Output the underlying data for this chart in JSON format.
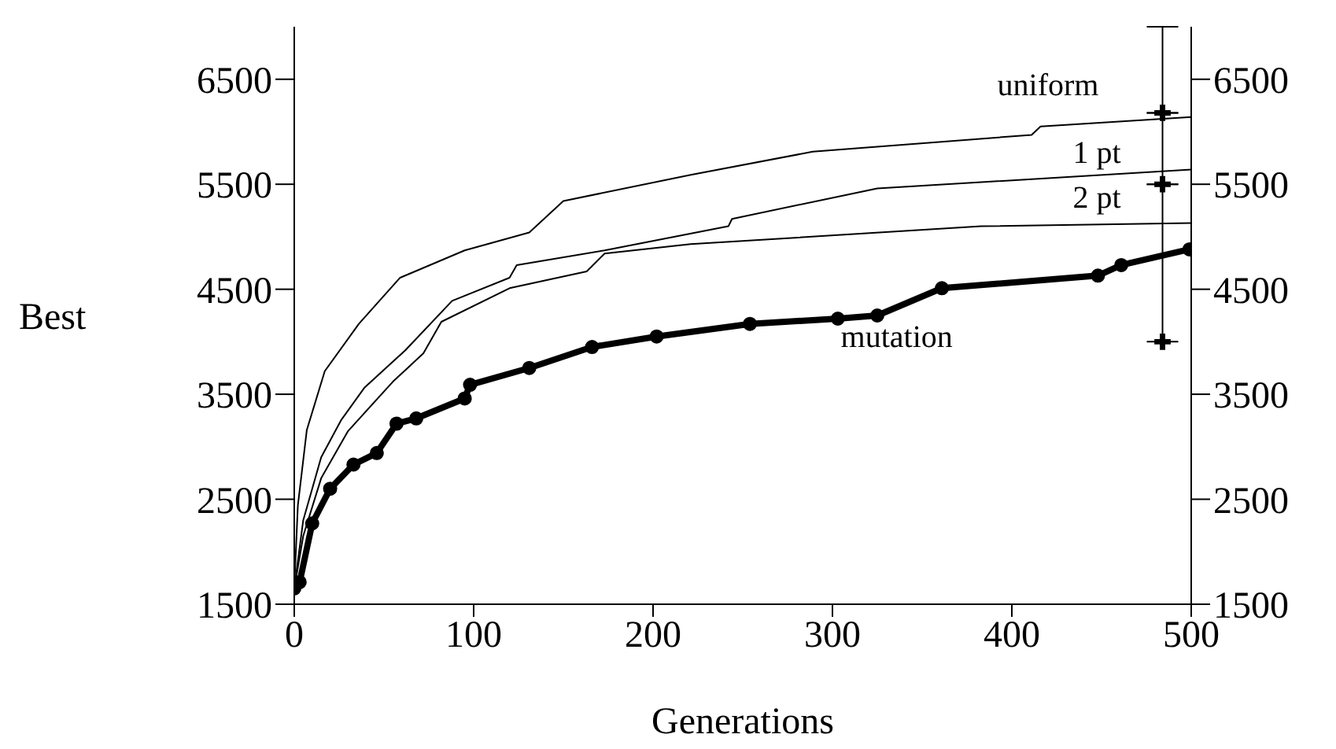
{
  "chart_data": {
    "type": "line",
    "xlabel": "Generations",
    "ylabel": "Best",
    "xlim": [
      0,
      500
    ],
    "xticks": [
      0,
      100,
      200,
      300,
      400,
      500
    ],
    "ylim": [
      1500,
      7000
    ],
    "yticks": [
      1500,
      2500,
      3500,
      4500,
      5500,
      6500
    ],
    "y2lim": [
      1500,
      7000
    ],
    "y2ticks": [
      1500,
      2500,
      3500,
      4500,
      5500,
      6500
    ],
    "grid": false,
    "legend": false,
    "line_style": "solid",
    "series": [
      {
        "name": "uniform",
        "color": "#000000",
        "marker": "none",
        "x": [
          0,
          2,
          7,
          17,
          36,
          59,
          95,
          131,
          150,
          221,
          289,
          411,
          416,
          500
        ],
        "values": [
          1650,
          2440,
          3160,
          3720,
          4170,
          4610,
          4870,
          5040,
          5340,
          5590,
          5810,
          5970,
          6050,
          6140
        ]
      },
      {
        "name": "1 pt",
        "color": "#000000",
        "marker": "none",
        "x": [
          0,
          5,
          15,
          26,
          39,
          62,
          88,
          120,
          124,
          173,
          242,
          244,
          325,
          500
        ],
        "values": [
          1650,
          2300,
          2900,
          3250,
          3560,
          3920,
          4390,
          4610,
          4730,
          4870,
          5100,
          5170,
          5460,
          5640
        ]
      },
      {
        "name": "2 pt",
        "color": "#000000",
        "marker": "none",
        "x": [
          0,
          5,
          15,
          30,
          55,
          72,
          82,
          120,
          163,
          173,
          221,
          383,
          500
        ],
        "values": [
          1650,
          2150,
          2700,
          3150,
          3620,
          3890,
          4190,
          4510,
          4670,
          4840,
          4930,
          5100,
          5130
        ]
      },
      {
        "name": "mutation",
        "color": "#000000",
        "marker": "circle",
        "x": [
          0,
          3,
          10,
          20,
          33,
          46,
          57,
          68,
          95,
          98,
          131,
          166,
          202,
          254,
          303,
          325,
          361,
          448,
          461,
          499
        ],
        "values": [
          1650,
          1710,
          2270,
          2600,
          2830,
          2940,
          3220,
          3270,
          3460,
          3590,
          3750,
          3950,
          4050,
          4170,
          4220,
          4250,
          4510,
          4630,
          4730,
          4880
        ]
      },
      {
        "type": "scatter",
        "color": "#000000",
        "marker": "cross",
        "x": [
          484,
          484,
          484
        ],
        "values": [
          4000,
          5500,
          6180
        ],
        "errors": [
          [
            4000,
            5500
          ],
          [
            5500,
            6180
          ],
          [
            6180,
            7000
          ]
        ]
      }
    ]
  }
}
